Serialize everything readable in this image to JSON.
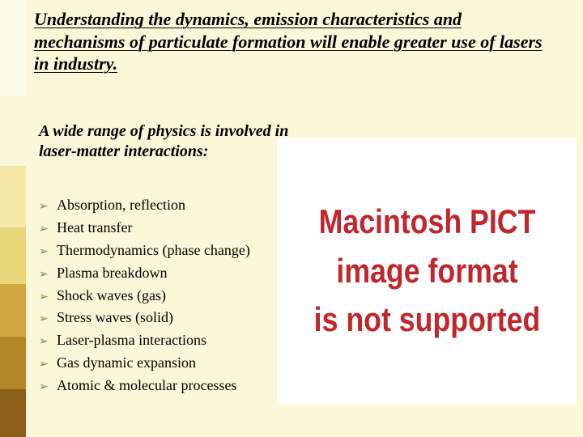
{
  "slide": {
    "background_color": "#fdf7d9",
    "title": "Understanding the dynamics, emission characteristics and mechanisms of particulate formation will enable greater use of lasers in industry.",
    "title_color": "#000000",
    "title_fontsize": 22,
    "subheading": "A wide range of physics is involved in laser-matter interactions:",
    "subheading_color": "#000000",
    "subheading_fontsize": 20,
    "bullets": [
      "Absorption, reflection",
      "Heat transfer",
      "Thermodynamics (phase change)",
      "Plasma breakdown",
      "Shock waves (gas)",
      "Stress waves (solid)",
      "Laser-plasma interactions",
      "Gas dynamic expansion",
      "Atomic & molecular processes"
    ],
    "bullet_marker": "➢",
    "bullet_marker_color": "#7a8a3a",
    "bullet_text_color": "#000000",
    "bullet_fontsize": 18
  },
  "left_stripe": {
    "segments": [
      {
        "color": "#fefce8",
        "height_pct": 22
      },
      {
        "color": "#fdf7d9",
        "height_pct": 16
      },
      {
        "color": "#f4e9a8",
        "height_pct": 14
      },
      {
        "color": "#e8d77a",
        "height_pct": 13
      },
      {
        "color": "#cfa93f",
        "height_pct": 12
      },
      {
        "color": "#b4862a",
        "height_pct": 12
      },
      {
        "color": "#8a5f17",
        "height_pct": 11
      }
    ]
  },
  "placeholder": {
    "line1": "Macintosh PICT",
    "line2": "image format",
    "line3": "is not supported",
    "background_color": "#ffffff",
    "text_color": "#c0272d",
    "fontsize": 42
  }
}
